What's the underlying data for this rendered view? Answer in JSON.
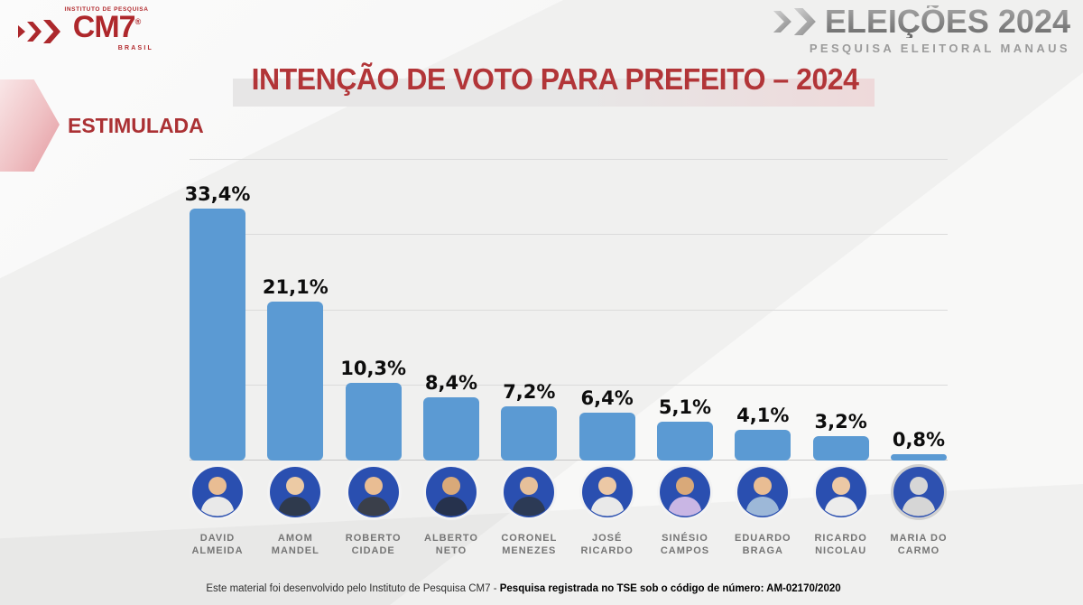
{
  "brand": {
    "institute_line": "INSTITUTO DE PESQUISA",
    "name": "CM7",
    "registered": "®",
    "country": "BRASIL"
  },
  "header_right": {
    "title": "ELEIÇÕES 2024",
    "subtitle": "PESQUISA ELEITORAL MANAUS"
  },
  "title": "INTENÇÃO DE VOTO PARA PREFEITO – 2024",
  "section_label": "ESTIMULADA",
  "chart_data": {
    "type": "bar",
    "title": "INTENÇÃO DE VOTO PARA PREFEITO – 2024",
    "subtitle": "ESTIMULADA",
    "categories": [
      "DAVID ALMEIDA",
      "AMOM MANDEL",
      "ROBERTO CIDADE",
      "ALBERTO NETO",
      "CORONEL MENEZES",
      "JOSÉ RICARDO",
      "SINÉSIO CAMPOS",
      "EDUARDO BRAGA",
      "RICARDO NICOLAU",
      "MARIA DO CARMO"
    ],
    "values": [
      33.4,
      21.1,
      10.3,
      8.4,
      7.2,
      6.4,
      5.1,
      4.1,
      3.2,
      0.8
    ],
    "value_labels": [
      "33,4%",
      "21,1%",
      "10,3%",
      "8,4%",
      "7,2%",
      "6,4%",
      "5,1%",
      "4,1%",
      "3,2%",
      "0,8%"
    ],
    "xlabel": "",
    "ylabel": "",
    "ylim": [
      0,
      40
    ],
    "gridlines": [
      40,
      30,
      20,
      10
    ],
    "grid": "horizontal",
    "legend": "none",
    "bar_color": "#5b9ad3"
  },
  "candidates": [
    {
      "name_line1": "DAVID",
      "name_line2": "ALMEIDA",
      "value": 33.4,
      "value_label": "33,4%",
      "avatar": {
        "bg": "#2a4fb0",
        "head": "#e9bd93",
        "body": "#e9e9e9",
        "ring": "#f3f3f3"
      }
    },
    {
      "name_line1": "AMOM",
      "name_line2": "MANDEL",
      "value": 21.1,
      "value_label": "21,1%",
      "avatar": {
        "bg": "#2a4fb0",
        "head": "#eccaa4",
        "body": "#2f3a4d",
        "ring": "#f3f3f3"
      }
    },
    {
      "name_line1": "ROBERTO",
      "name_line2": "CIDADE",
      "value": 10.3,
      "value_label": "10,3%",
      "avatar": {
        "bg": "#2a4fb0",
        "head": "#e9bd93",
        "body": "#3a3f4a",
        "ring": "#f3f3f3"
      }
    },
    {
      "name_line1": "ALBERTO",
      "name_line2": "NETO",
      "value": 8.4,
      "value_label": "8,4%",
      "avatar": {
        "bg": "#2a4fb0",
        "head": "#d9a979",
        "body": "#26324d",
        "ring": "#f3f3f3"
      }
    },
    {
      "name_line1": "CORONEL",
      "name_line2": "MENEZES",
      "value": 7.2,
      "value_label": "7,2%",
      "avatar": {
        "bg": "#2a4fb0",
        "head": "#e6c09a",
        "body": "#2c3a55",
        "ring": "#f3f3f3"
      }
    },
    {
      "name_line1": "JOSÉ",
      "name_line2": "RICARDO",
      "value": 6.4,
      "value_label": "6,4%",
      "avatar": {
        "bg": "#2a4fb0",
        "head": "#ecc8a5",
        "body": "#e9e9e9",
        "ring": "#f3f3f3"
      }
    },
    {
      "name_line1": "SINÉSIO",
      "name_line2": "CAMPOS",
      "value": 5.1,
      "value_label": "5,1%",
      "avatar": {
        "bg": "#2a4fb0",
        "head": "#d9a979",
        "body": "#c9b6e4",
        "ring": "#f3f3f3"
      }
    },
    {
      "name_line1": "EDUARDO",
      "name_line2": "BRAGA",
      "value": 4.1,
      "value_label": "4,1%",
      "avatar": {
        "bg": "#2a4fb0",
        "head": "#e9bd93",
        "body": "#9db8d8",
        "ring": "#f3f3f3"
      }
    },
    {
      "name_line1": "RICARDO",
      "name_line2": "NICOLAU",
      "value": 3.2,
      "value_label": "3,2%",
      "avatar": {
        "bg": "#2a4fb0",
        "head": "#ecc8a5",
        "body": "#ececec",
        "ring": "#f3f3f3"
      }
    },
    {
      "name_line1": "MARIA DO",
      "name_line2": "CARMO",
      "value": 0.8,
      "value_label": "0,8%",
      "avatar": {
        "bg": "#2e51b0",
        "head": "#d6d6d6",
        "body": "#d6d6d6",
        "ring": "#d0d0d0"
      }
    }
  ],
  "footer": {
    "normal": "Este material foi desenvolvido pelo Instituto de Pesquisa CM7 - ",
    "bold": "Pesquisa registrada no TSE sob o código de número: AM-02170/2020"
  },
  "colors": {
    "background": "#f0f0ef",
    "accent_red": "#b23538",
    "logo_red": "#ac282c",
    "bar_blue": "#5b9ad3",
    "avatar_blue": "#2a4fb0",
    "gridline": "#dbdbdb",
    "name_gray": "#757575",
    "silver": "#8b8b8b",
    "band_gray": "#e7e6e6",
    "band_pink": "#eed9da",
    "arrow_pink": "#e49aa0"
  }
}
